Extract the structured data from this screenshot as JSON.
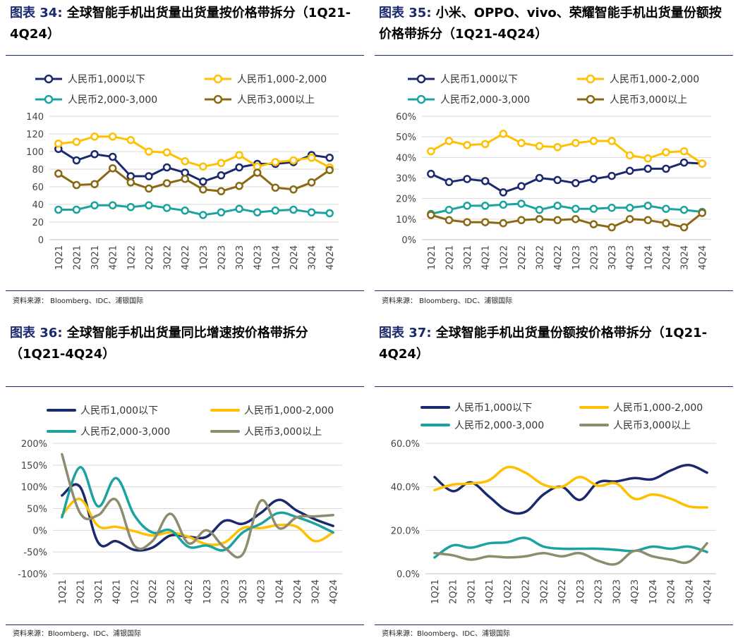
{
  "source_text": "资料来源：  Bloomberg、IDC、浦银国际",
  "source_text_b": "资料来源：Bloomberg、IDC、浦银国际",
  "colors": {
    "navy": "#1b2a6e",
    "yellow": "#ffc000",
    "teal": "#1aa3a0",
    "brown": "#8b6914",
    "gray": "#8e8b6e",
    "grid": "#d9d9d9"
  },
  "panels": {
    "p34": {
      "fig": "图表 34:",
      "title": "全球智能手机出货量出货量按价格带拆分（1Q21-4Q24）"
    },
    "p35": {
      "fig": "图表 35:",
      "title": "小米、OPPO、vivo、荣耀智能手机出货量份额按价格带拆分（1Q21-4Q24）"
    },
    "p36": {
      "fig": "图表 36:",
      "title": "全球智能手机出货量同比增速按价格带拆分（1Q21-4Q24）"
    },
    "p37": {
      "fig": "图表 37:",
      "title": "全球智能手机出货量份额按价格带拆分（1Q21-4Q24）"
    }
  },
  "chart_data": [
    {
      "id": "p34",
      "type": "line",
      "markers": true,
      "smooth": false,
      "categories": [
        "1Q21",
        "2Q21",
        "3Q21",
        "4Q21",
        "1Q22",
        "2Q22",
        "3Q22",
        "4Q22",
        "1Q23",
        "2Q23",
        "3Q23",
        "4Q23",
        "1Q24",
        "2Q24",
        "3Q24",
        "4Q24"
      ],
      "ylim": [
        0,
        140
      ],
      "yticks": [
        0,
        20,
        40,
        60,
        80,
        100,
        120,
        140
      ],
      "ytick_labels": [
        "0",
        "20",
        "40",
        "60",
        "80",
        "100",
        "120",
        "140"
      ],
      "series": [
        {
          "name": "人民币1,000以下",
          "color": "#1b2a6e",
          "values": [
            103,
            90,
            97,
            94,
            72,
            72,
            82,
            76,
            66,
            73,
            82,
            86,
            86,
            88,
            96,
            93
          ]
        },
        {
          "name": "人民币1,000-2,000",
          "color": "#ffc000",
          "values": [
            109,
            111,
            117,
            117,
            113,
            100,
            99,
            89,
            83,
            87,
            96,
            83,
            88,
            90,
            93,
            82
          ]
        },
        {
          "name": "人民币2,000-3,000",
          "color": "#1aa3a0",
          "values": [
            34,
            34,
            39,
            39,
            37,
            39,
            36,
            33,
            28,
            31,
            35,
            31,
            33,
            34,
            31,
            30
          ]
        },
        {
          "name": "人民币3,000以上",
          "color": "#8b6914",
          "values": [
            75,
            62,
            63,
            81,
            65,
            58,
            64,
            69,
            57,
            55,
            61,
            76,
            59,
            57,
            65,
            79
          ]
        }
      ]
    },
    {
      "id": "p35",
      "type": "line",
      "markers": true,
      "smooth": false,
      "categories": [
        "1Q21",
        "2Q21",
        "3Q21",
        "4Q21",
        "1Q22",
        "2Q22",
        "3Q22",
        "4Q22",
        "1Q23",
        "2Q23",
        "3Q23",
        "4Q23",
        "1Q24",
        "2Q24",
        "3Q24",
        "4Q24"
      ],
      "ylim": [
        0,
        60
      ],
      "yticks": [
        0,
        10,
        20,
        30,
        40,
        50,
        60
      ],
      "ytick_labels": [
        "0%",
        "10%",
        "20%",
        "30%",
        "40%",
        "50%",
        "60%"
      ],
      "series": [
        {
          "name": "人民币1,000以下",
          "color": "#1b2a6e",
          "values": [
            32,
            28,
            29.5,
            28.5,
            23,
            26,
            30,
            29,
            27.5,
            29.5,
            31,
            33.5,
            34.5,
            34.5,
            37.5,
            37
          ]
        },
        {
          "name": "人民币1,000-2,000",
          "color": "#ffc000",
          "values": [
            43,
            48,
            46,
            46.5,
            51.5,
            47,
            45.5,
            45,
            47,
            48,
            48,
            41,
            39.5,
            42.5,
            43,
            37
          ]
        },
        {
          "name": "人民币2,000-3,000",
          "color": "#1aa3a0",
          "values": [
            12.5,
            14.5,
            16.5,
            16.5,
            17,
            17.5,
            14.5,
            16.5,
            15,
            15,
            15.5,
            15.5,
            16.5,
            15,
            14.5,
            13.5
          ]
        },
        {
          "name": "人民币3,000以上",
          "color": "#8b6914",
          "values": [
            12,
            9.5,
            8.5,
            8.5,
            8,
            9.5,
            10,
            9.5,
            10,
            7.5,
            6,
            10,
            9.5,
            8,
            6,
            13
          ]
        }
      ]
    },
    {
      "id": "p36",
      "type": "line",
      "markers": false,
      "smooth": true,
      "categories": [
        "1Q21",
        "2Q21",
        "3Q21",
        "4Q21",
        "1Q22",
        "2Q22",
        "3Q22",
        "4Q22",
        "1Q23",
        "2Q23",
        "3Q23",
        "4Q23",
        "1Q24",
        "2Q24",
        "3Q24",
        "4Q24"
      ],
      "ylim": [
        -100,
        200
      ],
      "yticks": [
        -100,
        -50,
        0,
        50,
        100,
        150,
        200
      ],
      "ytick_labels": [
        "-100%",
        "-50%",
        "0%",
        "50%",
        "100%",
        "150%",
        "200%"
      ],
      "series": [
        {
          "name": "人民币1,000以下",
          "color": "#1b2a6e",
          "values": [
            80,
            100,
            -28,
            -25,
            -45,
            -40,
            -12,
            -15,
            -15,
            22,
            15,
            40,
            70,
            45,
            25,
            10
          ]
        },
        {
          "name": "人民币1,000-2,000",
          "color": "#ffc000",
          "values": [
            35,
            72,
            10,
            8,
            -2,
            -12,
            -5,
            -15,
            -32,
            -28,
            5,
            5,
            12,
            8,
            -25,
            -5
          ]
        },
        {
          "name": "人民币2,000-3,000",
          "color": "#1aa3a0",
          "values": [
            30,
            145,
            55,
            120,
            35,
            -5,
            0,
            -38,
            -35,
            -45,
            -5,
            15,
            40,
            30,
            15,
            -5
          ]
        },
        {
          "name": "人民币3,000以上",
          "color": "#8e8b6e",
          "values": [
            175,
            40,
            35,
            70,
            -35,
            -25,
            38,
            -30,
            0,
            -40,
            -55,
            68,
            5,
            30,
            32,
            35
          ]
        }
      ]
    },
    {
      "id": "p37",
      "type": "line",
      "markers": false,
      "smooth": true,
      "categories": [
        "1Q21",
        "2Q21",
        "3Q21",
        "4Q21",
        "1Q22",
        "2Q22",
        "3Q22",
        "4Q22",
        "1Q23",
        "2Q23",
        "3Q23",
        "4Q23",
        "1Q24",
        "2Q24",
        "3Q24",
        "4Q24"
      ],
      "ylim": [
        0,
        60
      ],
      "yticks": [
        0,
        20,
        40,
        60
      ],
      "ytick_labels": [
        "0.0%",
        "20.0%",
        "40.0%",
        "60.0%"
      ],
      "series": [
        {
          "name": "人民币1,000以下",
          "color": "#1b2a6e",
          "values": [
            44.5,
            38,
            42,
            35.5,
            29,
            28.5,
            36.5,
            40,
            34,
            42,
            42.5,
            44,
            43.5,
            47.5,
            50,
            46.5
          ]
        },
        {
          "name": "人民币1,000-2,000",
          "color": "#ffc000",
          "values": [
            38.5,
            41,
            41.5,
            43,
            49,
            46.5,
            41,
            40,
            44.5,
            40.5,
            41.5,
            34.5,
            36.5,
            34.5,
            31,
            30.5
          ]
        },
        {
          "name": "人民币2,000-3,000",
          "color": "#1aa3a0",
          "values": [
            7.5,
            13,
            12,
            14,
            14.5,
            16.5,
            12.5,
            11.5,
            11.5,
            11.5,
            11,
            10.5,
            12.5,
            11.5,
            12.5,
            10
          ]
        },
        {
          "name": "人民币3,000以上",
          "color": "#8e8b6e",
          "values": [
            9.5,
            8.5,
            6.5,
            8,
            7.5,
            8,
            9.5,
            8,
            9.5,
            6,
            4.5,
            10.5,
            8,
            6.5,
            5.5,
            14
          ]
        }
      ]
    }
  ]
}
